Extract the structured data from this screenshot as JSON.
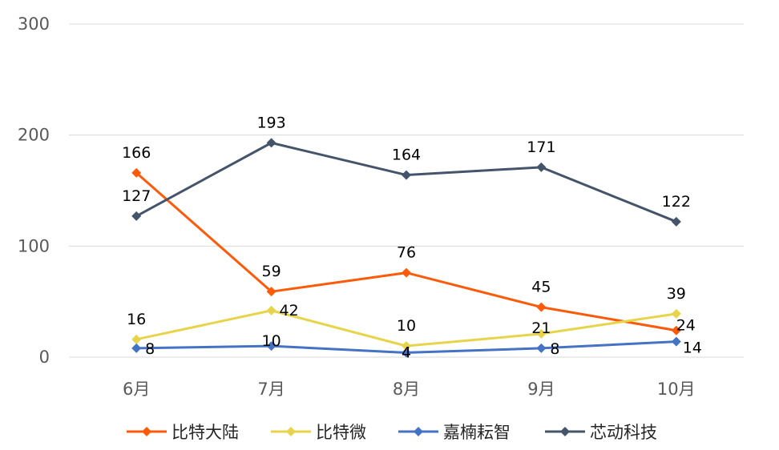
{
  "chart_data": {
    "type": "line",
    "title": "",
    "xlabel": "",
    "ylabel": "",
    "categories": [
      "6月",
      "7月",
      "8月",
      "9月",
      "10月"
    ],
    "ylim": [
      0,
      300
    ],
    "yticks": [
      0,
      100,
      200,
      300
    ],
    "grid": true,
    "legend_position": "bottom",
    "series": [
      {
        "name": "比特大陆",
        "color": "#ff5a0a",
        "marker": "diamond",
        "values": [
          166,
          59,
          76,
          45,
          24
        ]
      },
      {
        "name": "比特微",
        "color": "#e8d44a",
        "marker": "diamond",
        "values": [
          16,
          42,
          10,
          21,
          39
        ]
      },
      {
        "name": "嘉楠耘智",
        "color": "#4472c4",
        "marker": "diamond",
        "values": [
          8,
          10,
          4,
          8,
          14
        ]
      },
      {
        "name": "芯动科技",
        "color": "#44546a",
        "marker": "diamond",
        "values": [
          127,
          193,
          164,
          171,
          122
        ]
      }
    ]
  }
}
